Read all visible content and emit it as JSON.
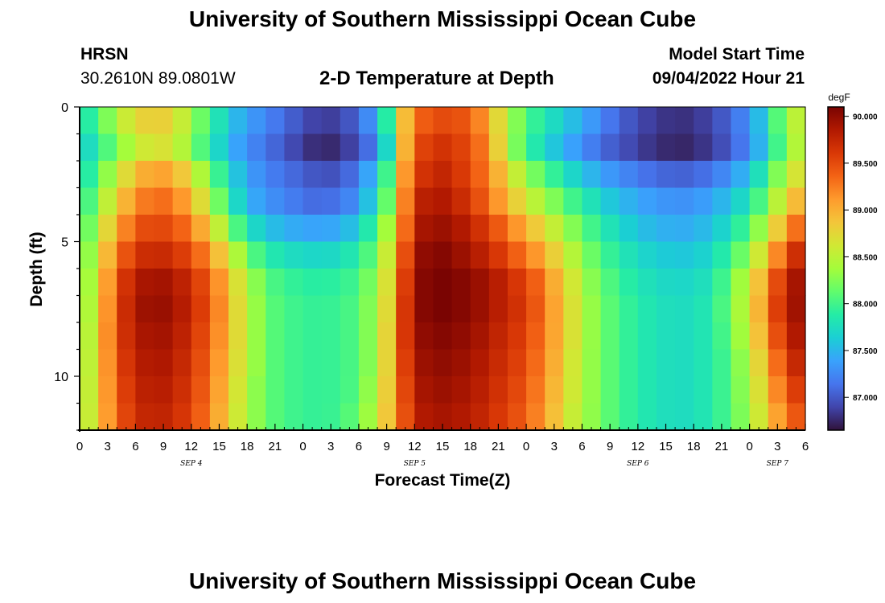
{
  "header": {
    "title": "University of Southern Mississippi Ocean Cube",
    "station": "HRSN",
    "coords": "30.2610N  89.0801W",
    "subtitle": "2-D Temperature at Depth",
    "model_start_label": "Model Start Time",
    "model_start_value": "09/04/2022 Hour 21"
  },
  "footer": {
    "title": "University of Southern Mississippi Ocean Cube"
  },
  "chart_data": {
    "type": "heatmap",
    "title": "2-D Temperature at Depth",
    "xlabel": "Forecast Time(Z)",
    "ylabel": "Depth (ft)",
    "xtick_labels": [
      "0",
      "3",
      "6",
      "9",
      "12",
      "15",
      "18",
      "21",
      "0",
      "3",
      "6",
      "9",
      "12",
      "15",
      "18",
      "21",
      "0",
      "3",
      "6",
      "9",
      "12",
      "15",
      "18",
      "21",
      "0",
      "3",
      "6"
    ],
    "day_labels": [
      {
        "label": "SEP 4",
        "hour": 12
      },
      {
        "label": "SEP 5",
        "hour": 36
      },
      {
        "label": "SEP 6",
        "hour": 60
      },
      {
        "label": "SEP 7",
        "hour": 75
      }
    ],
    "x_range_hours": [
      0,
      78
    ],
    "y_range_ft": [
      0,
      12
    ],
    "ytick_labels": [
      "0",
      "5",
      "10"
    ],
    "depth_levels_ft": [
      0.5,
      1.5,
      2.5,
      3.5,
      4.5,
      5.5,
      6.5,
      7.5,
      8.5,
      9.5,
      10.5,
      11.5
    ],
    "colorbar": {
      "units": "degF",
      "range": [
        86.65,
        90.1
      ],
      "ticks": [
        "87.000",
        "87.500",
        "88.000",
        "88.500",
        "89.000",
        "89.500",
        "90.000"
      ],
      "colors": [
        "#30123b",
        "#4145ab",
        "#4675ed",
        "#39a2fc",
        "#1bcfd4",
        "#24eca6",
        "#61fc6c",
        "#a4fc3b",
        "#d1e834",
        "#f3c63a",
        "#fe9b2d",
        "#f36315",
        "#d93806",
        "#b11901",
        "#7a0402"
      ]
    },
    "temperature_grid_degF": [
      [
        87.75,
        88.05,
        88.45,
        88.75,
        88.85,
        88.7,
        88.3,
        87.9,
        87.55,
        87.35,
        87.2,
        87.05,
        86.9,
        86.85,
        86.95,
        87.2,
        87.8,
        88.9,
        89.4,
        89.5,
        89.45,
        89.2,
        88.7,
        88.2,
        87.9,
        87.7,
        87.5,
        87.3,
        87.1,
        86.95,
        86.85,
        86.8,
        86.8,
        86.9,
        87.05,
        87.3,
        87.7,
        88.4,
        88.6
      ],
      [
        87.6,
        87.9,
        88.25,
        88.55,
        88.7,
        88.6,
        88.2,
        87.8,
        87.45,
        87.25,
        87.1,
        86.95,
        86.8,
        86.75,
        86.85,
        87.05,
        87.6,
        88.95,
        89.55,
        89.65,
        89.55,
        89.3,
        88.75,
        88.15,
        87.8,
        87.55,
        87.35,
        87.15,
        87.0,
        86.9,
        86.8,
        86.75,
        86.75,
        86.85,
        87.0,
        87.25,
        87.65,
        88.3,
        88.6
      ],
      [
        87.7,
        88.1,
        88.55,
        88.95,
        89.1,
        89.0,
        88.6,
        88.1,
        87.65,
        87.35,
        87.2,
        87.1,
        87.0,
        86.95,
        87.05,
        87.35,
        87.9,
        89.1,
        89.65,
        89.75,
        89.6,
        89.35,
        88.95,
        88.5,
        88.15,
        87.9,
        87.65,
        87.45,
        87.3,
        87.2,
        87.1,
        87.05,
        87.05,
        87.15,
        87.3,
        87.55,
        87.95,
        88.5,
        88.8
      ],
      [
        87.8,
        88.3,
        88.8,
        89.2,
        89.35,
        89.25,
        88.9,
        88.35,
        87.8,
        87.45,
        87.3,
        87.2,
        87.1,
        87.1,
        87.2,
        87.5,
        88.05,
        89.2,
        89.8,
        89.85,
        89.7,
        89.45,
        89.1,
        88.75,
        88.45,
        88.2,
        87.95,
        87.75,
        87.55,
        87.45,
        87.35,
        87.3,
        87.3,
        87.4,
        87.55,
        87.8,
        88.2,
        88.75,
        89.1
      ],
      [
        87.9,
        88.5,
        89.05,
        89.45,
        89.55,
        89.45,
        89.2,
        88.7,
        88.15,
        87.75,
        87.55,
        87.45,
        87.4,
        87.4,
        87.5,
        87.8,
        88.3,
        89.3,
        89.9,
        89.95,
        89.85,
        89.65,
        89.4,
        89.1,
        88.8,
        88.5,
        88.2,
        87.95,
        87.75,
        87.6,
        87.5,
        87.45,
        87.45,
        87.55,
        87.75,
        88.05,
        88.5,
        89.1,
        89.5
      ],
      [
        88.0,
        88.65,
        89.3,
        89.65,
        89.75,
        89.65,
        89.45,
        89.05,
        88.55,
        88.1,
        87.85,
        87.75,
        87.7,
        87.7,
        87.8,
        88.0,
        88.5,
        89.45,
        90.0,
        90.05,
        89.95,
        89.8,
        89.6,
        89.35,
        89.1,
        88.75,
        88.4,
        88.1,
        87.9,
        87.75,
        87.65,
        87.6,
        87.6,
        87.7,
        87.95,
        88.3,
        88.85,
        89.5,
        89.85
      ],
      [
        88.05,
        88.75,
        89.5,
        89.85,
        89.95,
        89.85,
        89.65,
        89.3,
        88.8,
        88.35,
        88.05,
        87.95,
        87.9,
        87.9,
        87.95,
        88.15,
        88.6,
        89.55,
        90.05,
        90.1,
        90.05,
        89.95,
        89.8,
        89.6,
        89.35,
        88.95,
        88.55,
        88.2,
        88.0,
        87.85,
        87.75,
        87.7,
        87.7,
        87.8,
        88.1,
        88.55,
        89.15,
        89.8,
        90.0
      ],
      [
        88.1,
        88.8,
        89.55,
        89.9,
        90.0,
        89.9,
        89.7,
        89.35,
        88.85,
        88.4,
        88.1,
        88.0,
        87.95,
        87.95,
        88.0,
        88.2,
        88.65,
        89.6,
        90.05,
        90.1,
        90.05,
        89.95,
        89.8,
        89.65,
        89.4,
        89.0,
        88.6,
        88.25,
        88.05,
        87.9,
        87.8,
        87.75,
        87.75,
        87.85,
        88.15,
        88.6,
        89.25,
        89.85,
        90.0
      ],
      [
        88.15,
        88.85,
        89.55,
        89.85,
        89.95,
        89.85,
        89.65,
        89.3,
        88.85,
        88.4,
        88.1,
        88.0,
        87.95,
        87.95,
        88.0,
        88.2,
        88.7,
        89.6,
        90.0,
        90.05,
        90.0,
        89.9,
        89.75,
        89.6,
        89.35,
        89.0,
        88.6,
        88.25,
        88.05,
        87.9,
        87.8,
        87.75,
        87.75,
        87.85,
        88.1,
        88.55,
        89.15,
        89.75,
        89.95
      ],
      [
        88.2,
        88.85,
        89.5,
        89.8,
        89.9,
        89.8,
        89.6,
        89.25,
        88.8,
        88.4,
        88.1,
        88.0,
        87.95,
        87.95,
        88.0,
        88.2,
        88.7,
        89.55,
        89.95,
        90.0,
        89.95,
        89.85,
        89.7,
        89.55,
        89.3,
        88.95,
        88.55,
        88.25,
        88.05,
        87.9,
        87.8,
        87.75,
        87.75,
        87.85,
        88.05,
        88.45,
        89.0,
        89.6,
        89.85
      ],
      [
        88.25,
        88.85,
        89.45,
        89.75,
        89.85,
        89.75,
        89.55,
        89.2,
        88.75,
        88.35,
        88.1,
        88.0,
        87.95,
        87.95,
        88.0,
        88.25,
        88.75,
        89.5,
        89.9,
        89.95,
        89.9,
        89.8,
        89.65,
        89.5,
        89.25,
        88.9,
        88.55,
        88.25,
        88.05,
        87.9,
        87.8,
        87.75,
        87.75,
        87.85,
        88.05,
        88.4,
        88.9,
        89.45,
        89.7
      ],
      [
        88.3,
        88.85,
        89.4,
        89.7,
        89.8,
        89.7,
        89.5,
        89.15,
        88.7,
        88.35,
        88.1,
        88.0,
        87.95,
        87.95,
        88.05,
        88.3,
        88.8,
        89.45,
        89.85,
        89.9,
        89.85,
        89.75,
        89.6,
        89.45,
        89.2,
        88.85,
        88.5,
        88.25,
        88.05,
        87.9,
        87.8,
        87.75,
        87.75,
        87.85,
        88.05,
        88.35,
        88.8,
        89.3,
        89.55
      ]
    ]
  }
}
